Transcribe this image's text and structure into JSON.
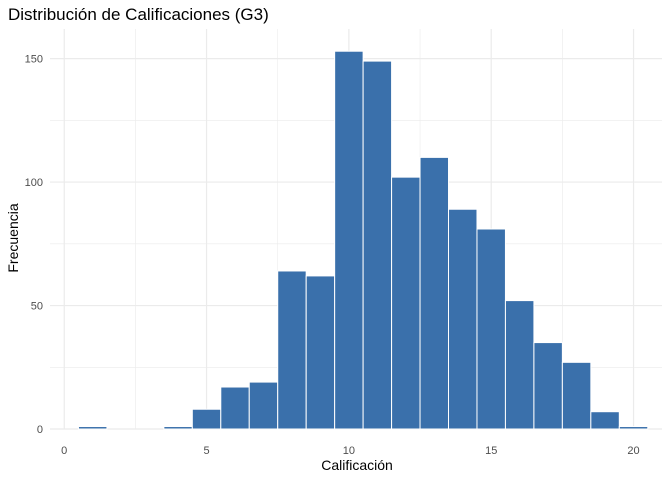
{
  "chart_data": {
    "type": "bar",
    "title": "Distribución de Calificaciones (G3)",
    "xlabel": "Calificación",
    "ylabel": "Frecuencia",
    "xlim": [
      -0.5,
      21
    ],
    "ylim": [
      0,
      162
    ],
    "x_ticks": [
      0,
      5,
      10,
      15,
      20
    ],
    "y_ticks": [
      0,
      50,
      100,
      150
    ],
    "bin_width": 1,
    "bins": [
      {
        "x": 1,
        "value": 1
      },
      {
        "x": 4,
        "value": 1
      },
      {
        "x": 5,
        "value": 8
      },
      {
        "x": 6,
        "value": 17
      },
      {
        "x": 7,
        "value": 19
      },
      {
        "x": 8,
        "value": 64
      },
      {
        "x": 9,
        "value": 62
      },
      {
        "x": 10,
        "value": 153
      },
      {
        "x": 11,
        "value": 149
      },
      {
        "x": 12,
        "value": 102
      },
      {
        "x": 13,
        "value": 110
      },
      {
        "x": 14,
        "value": 89
      },
      {
        "x": 15,
        "value": 81
      },
      {
        "x": 16,
        "value": 52
      },
      {
        "x": 17,
        "value": 35
      },
      {
        "x": 18,
        "value": 27
      },
      {
        "x": 19,
        "value": 7
      },
      {
        "x": 20,
        "value": 1
      }
    ],
    "bar_color": "#3a70ab",
    "bar_outline": "#ffffff",
    "grid": true,
    "grid_color": "#ebebeb",
    "background": "#ffffff",
    "legend": "none"
  }
}
